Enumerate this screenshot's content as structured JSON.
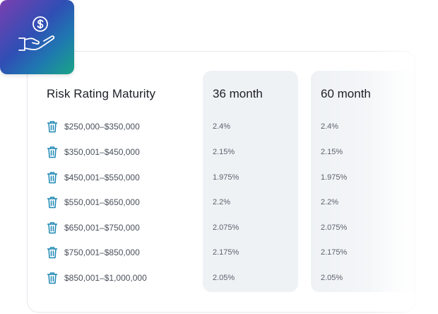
{
  "table": {
    "title": "Risk Rating Maturity",
    "columns": [
      "36 month",
      "60 month"
    ],
    "rows": [
      {
        "range": "$250,000–$350,000",
        "m36": "2.4%",
        "m60": "2.4%"
      },
      {
        "range": "$350,001–$450,000",
        "m36": "2.15%",
        "m60": "2.15%"
      },
      {
        "range": "$450,001–$550,000",
        "m36": "1.975%",
        "m60": "1.975%"
      },
      {
        "range": "$550,001–$650,000",
        "m36": "2.2%",
        "m60": "2.2%"
      },
      {
        "range": "$650,001–$750,000",
        "m36": "2.075%",
        "m60": "2.075%"
      },
      {
        "range": "$750,001–$850,000",
        "m36": "2.175%",
        "m60": "2.175%"
      },
      {
        "range": "$850,001–$1,000,000",
        "m36": "2.05%",
        "m60": "2.05%"
      }
    ]
  },
  "icons": {
    "logo": "hand-holding-dollar-icon",
    "row": "trash-icon"
  },
  "colors": {
    "row_icon": "#1e88b4",
    "column_bg": "#eff2f5",
    "text_primary": "#1c1f26",
    "text_secondary": "#5c626d"
  }
}
